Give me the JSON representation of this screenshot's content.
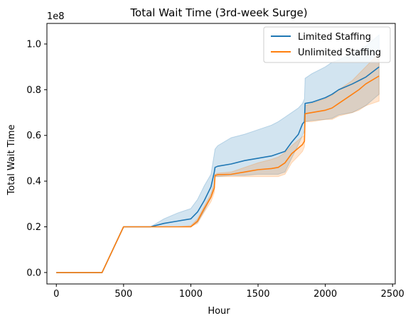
{
  "chart_data": {
    "type": "line",
    "title": "Total Wait Time (3rd-week Surge)",
    "xlabel": "Hour",
    "ylabel": "Total Wait Time",
    "y_offset_label": "1e8",
    "xlim": [
      -70,
      2520
    ],
    "ylim": [
      -0.05,
      1.09
    ],
    "x_ticks": [
      0,
      500,
      1000,
      1500,
      2000,
      2500
    ],
    "x_tick_labels": [
      "0",
      "500",
      "1000",
      "1500",
      "2000",
      "2500"
    ],
    "y_ticks": [
      0.0,
      0.2,
      0.4,
      0.6,
      0.8,
      1.0
    ],
    "y_tick_labels": [
      "0.0",
      "0.2",
      "0.4",
      "0.6",
      "0.8",
      "1.0"
    ],
    "grid": false,
    "legend_position": "top-right",
    "series": [
      {
        "name": "Limited Staffing",
        "color": "#1f77b4",
        "x": [
          0,
          340,
          500,
          700,
          800,
          900,
          1000,
          1050,
          1100,
          1150,
          1175,
          1180,
          1200,
          1300,
          1400,
          1500,
          1600,
          1650,
          1700,
          1750,
          1800,
          1830,
          1845,
          1850,
          1900,
          2000,
          2050,
          2100,
          2200,
          2300,
          2400
        ],
        "y": [
          0.0,
          0.0,
          0.2,
          0.2,
          0.215,
          0.225,
          0.235,
          0.265,
          0.315,
          0.375,
          0.44,
          0.46,
          0.465,
          0.475,
          0.49,
          0.5,
          0.51,
          0.52,
          0.53,
          0.57,
          0.605,
          0.65,
          0.66,
          0.74,
          0.745,
          0.765,
          0.78,
          0.8,
          0.825,
          0.855,
          0.9
        ],
        "lower": [
          0.0,
          0.0,
          0.2,
          0.2,
          0.2,
          0.2,
          0.2,
          0.22,
          0.27,
          0.33,
          0.4,
          0.42,
          0.42,
          0.425,
          0.425,
          0.43,
          0.43,
          0.43,
          0.44,
          0.5,
          0.56,
          0.6,
          0.62,
          0.66,
          0.665,
          0.67,
          0.675,
          0.69,
          0.7,
          0.73,
          0.78
        ],
        "upper": [
          0.0,
          0.0,
          0.2,
          0.2,
          0.235,
          0.26,
          0.28,
          0.32,
          0.38,
          0.43,
          0.52,
          0.54,
          0.555,
          0.59,
          0.605,
          0.625,
          0.645,
          0.66,
          0.68,
          0.7,
          0.72,
          0.74,
          0.76,
          0.85,
          0.87,
          0.9,
          0.92,
          0.93,
          0.96,
          0.99,
          1.04
        ]
      },
      {
        "name": "Unlimited Staffing",
        "color": "#ff7f0e",
        "x": [
          0,
          340,
          500,
          700,
          800,
          900,
          1000,
          1050,
          1100,
          1150,
          1175,
          1180,
          1200,
          1300,
          1400,
          1500,
          1600,
          1650,
          1700,
          1750,
          1800,
          1830,
          1845,
          1850,
          1900,
          2000,
          2050,
          2100,
          2200,
          2250,
          2300,
          2400
        ],
        "y": [
          0.0,
          0.0,
          0.2,
          0.2,
          0.2,
          0.2,
          0.2,
          0.225,
          0.28,
          0.33,
          0.37,
          0.425,
          0.428,
          0.43,
          0.44,
          0.45,
          0.455,
          0.46,
          0.48,
          0.52,
          0.545,
          0.56,
          0.575,
          0.695,
          0.7,
          0.71,
          0.72,
          0.74,
          0.78,
          0.8,
          0.825,
          0.86
        ],
        "lower": [
          0.0,
          0.0,
          0.2,
          0.2,
          0.2,
          0.2,
          0.2,
          0.215,
          0.265,
          0.31,
          0.35,
          0.42,
          0.42,
          0.42,
          0.42,
          0.42,
          0.42,
          0.42,
          0.43,
          0.48,
          0.51,
          0.53,
          0.55,
          0.66,
          0.66,
          0.67,
          0.67,
          0.685,
          0.7,
          0.71,
          0.73,
          0.75
        ],
        "upper": [
          0.0,
          0.0,
          0.2,
          0.2,
          0.2,
          0.2,
          0.205,
          0.235,
          0.29,
          0.345,
          0.385,
          0.43,
          0.435,
          0.44,
          0.46,
          0.48,
          0.495,
          0.505,
          0.525,
          0.555,
          0.58,
          0.595,
          0.6,
          0.73,
          0.74,
          0.76,
          0.775,
          0.8,
          0.84,
          0.87,
          0.9,
          0.96
        ]
      }
    ]
  }
}
